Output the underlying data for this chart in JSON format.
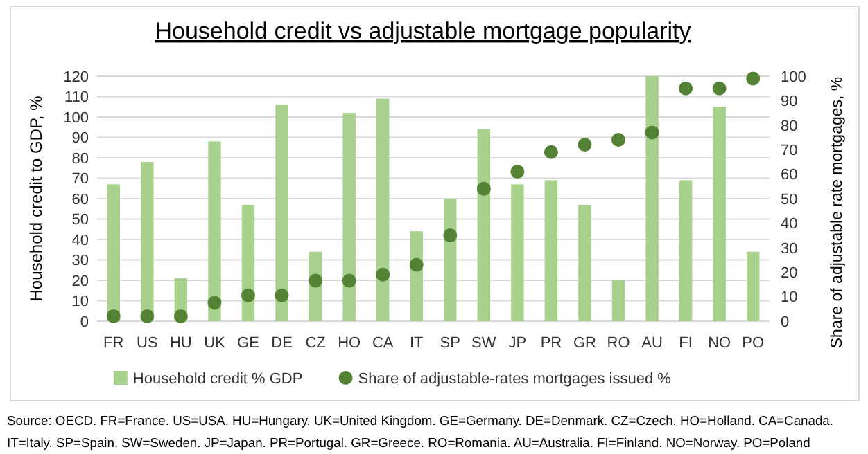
{
  "chart_data": {
    "type": "bar",
    "title": "Household credit vs adjustable mortgage popularity",
    "ylabel": "Household credit to GDP, %",
    "y2label": "Share of adjustable rate mortgages, %",
    "categories": [
      "FR",
      "US",
      "HU",
      "UK",
      "GE",
      "DE",
      "CZ",
      "HO",
      "CA",
      "IT",
      "SP",
      "SW",
      "JP",
      "PR",
      "GR",
      "RO",
      "AU",
      "FI",
      "NO",
      "PO"
    ],
    "series": [
      {
        "name": "Household credit % GDP",
        "color": "#a9d18e",
        "values": [
          67,
          78,
          21,
          88,
          57,
          106,
          34,
          102,
          109,
          44,
          60,
          94,
          67,
          69,
          57,
          20,
          120,
          69,
          105,
          34
        ]
      },
      {
        "name": "Share of adjustable-rates mortgages issued %",
        "type": "scatter",
        "axis": "y2",
        "color": "#548235",
        "values": [
          2,
          2,
          2,
          7.5,
          10.5,
          10.5,
          16.5,
          16.5,
          19,
          23,
          35,
          54,
          61,
          69,
          72,
          74,
          77,
          95,
          95,
          99
        ]
      }
    ],
    "ylim": [
      0,
      120
    ],
    "yticks": [
      0,
      10,
      20,
      30,
      40,
      50,
      60,
      70,
      80,
      90,
      100,
      110,
      120
    ],
    "y2lim": [
      0,
      100
    ],
    "y2ticks": [
      0,
      10,
      20,
      30,
      40,
      50,
      60,
      70,
      80,
      90,
      100
    ],
    "grid": "y",
    "legend": "bottom",
    "marker": "circle",
    "annotations": [
      "Source: OECD. FR=France. US=USA. HU=Hungary. UK=United Kingdom. GE=Germany. DE=Denmark. CZ=Czech. HO=Holland. CA=Canada.",
      "IT=Italy. SP=Spain. SW=Sweden. JP=Japan. PR=Portugal. GR=Greece. RO=Romania. AU=Australia. FI=Finland. NO=Norway. PO=Poland"
    ]
  }
}
